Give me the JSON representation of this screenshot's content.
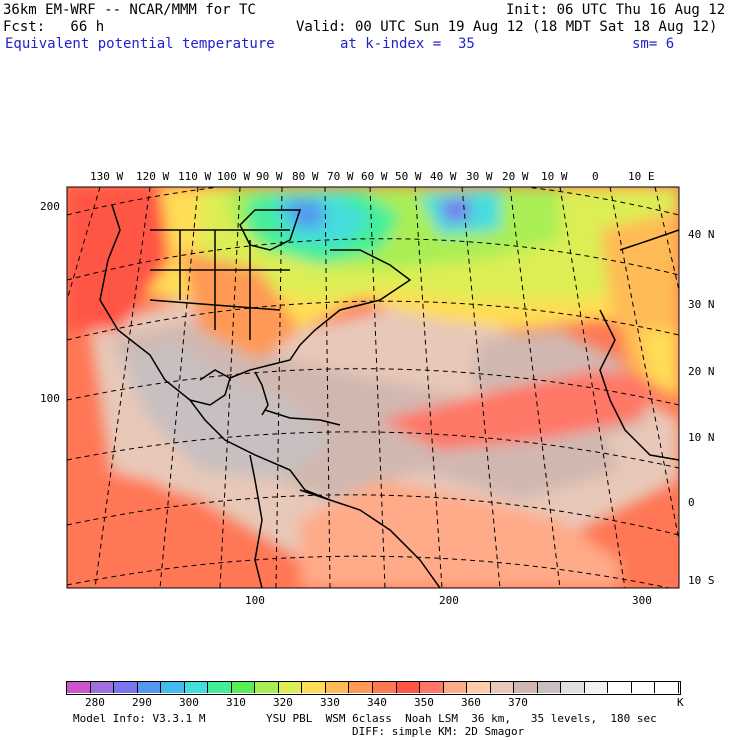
{
  "header": {
    "line1_left": "36km EM-WRF -- NCAR/MMM for TC",
    "line1_right": "Init: 06 UTC Thu 16 Aug 12",
    "line2_left": "Fcst:   66 h",
    "line2_right": "Valid: 00 UTC Sun 19 Aug 12 (18 MDT Sat 18 Aug 12)",
    "field_name": "Equivalent potential temperature",
    "level": "at k-index =  35",
    "smoothing": "sm= 6"
  },
  "map": {
    "longitude_labels": [
      "130 W",
      "120 W",
      "110 W",
      "100 W",
      "90 W",
      "80 W",
      "70 W",
      "60 W",
      "50 W",
      "40 W",
      "30 W",
      "20 W",
      "10 W",
      "0",
      "10 E"
    ],
    "latitude_labels": [
      "40 N",
      "30 N",
      "20 N",
      "10 N",
      "0",
      "10 S"
    ],
    "grid_y_labels": [
      "200",
      "100"
    ],
    "grid_x_labels": [
      "100",
      "200",
      "300"
    ]
  },
  "colorbar": {
    "values": [
      "280",
      "290",
      "300",
      "310",
      "320",
      "330",
      "340",
      "350",
      "360",
      "370"
    ],
    "units": "K",
    "colors": [
      "#cc55cc",
      "#a070dd",
      "#7878ee",
      "#5599ee",
      "#44bbee",
      "#44dddd",
      "#44ee99",
      "#55ee55",
      "#aaee55",
      "#ddee55",
      "#ffdd55",
      "#ffbb55",
      "#ff9955",
      "#ff7755",
      "#ff5544",
      "#ff7766",
      "#ffaa88",
      "#ffccaa",
      "#e8c8b8",
      "#d0b8b0",
      "#c8c0c0",
      "#e0e0e0",
      "#f2f2f2",
      "#ffffff",
      "#ffffff",
      "#ffffff"
    ]
  },
  "footer": {
    "model_info": "Model Info: V3.3.1 M",
    "physics_line1": "YSU PBL  WSM 6class  Noah LSM  36 km,   35 levels,  180 sec",
    "physics_line2": "DIFF: simple KM: 2D Smagor"
  }
}
